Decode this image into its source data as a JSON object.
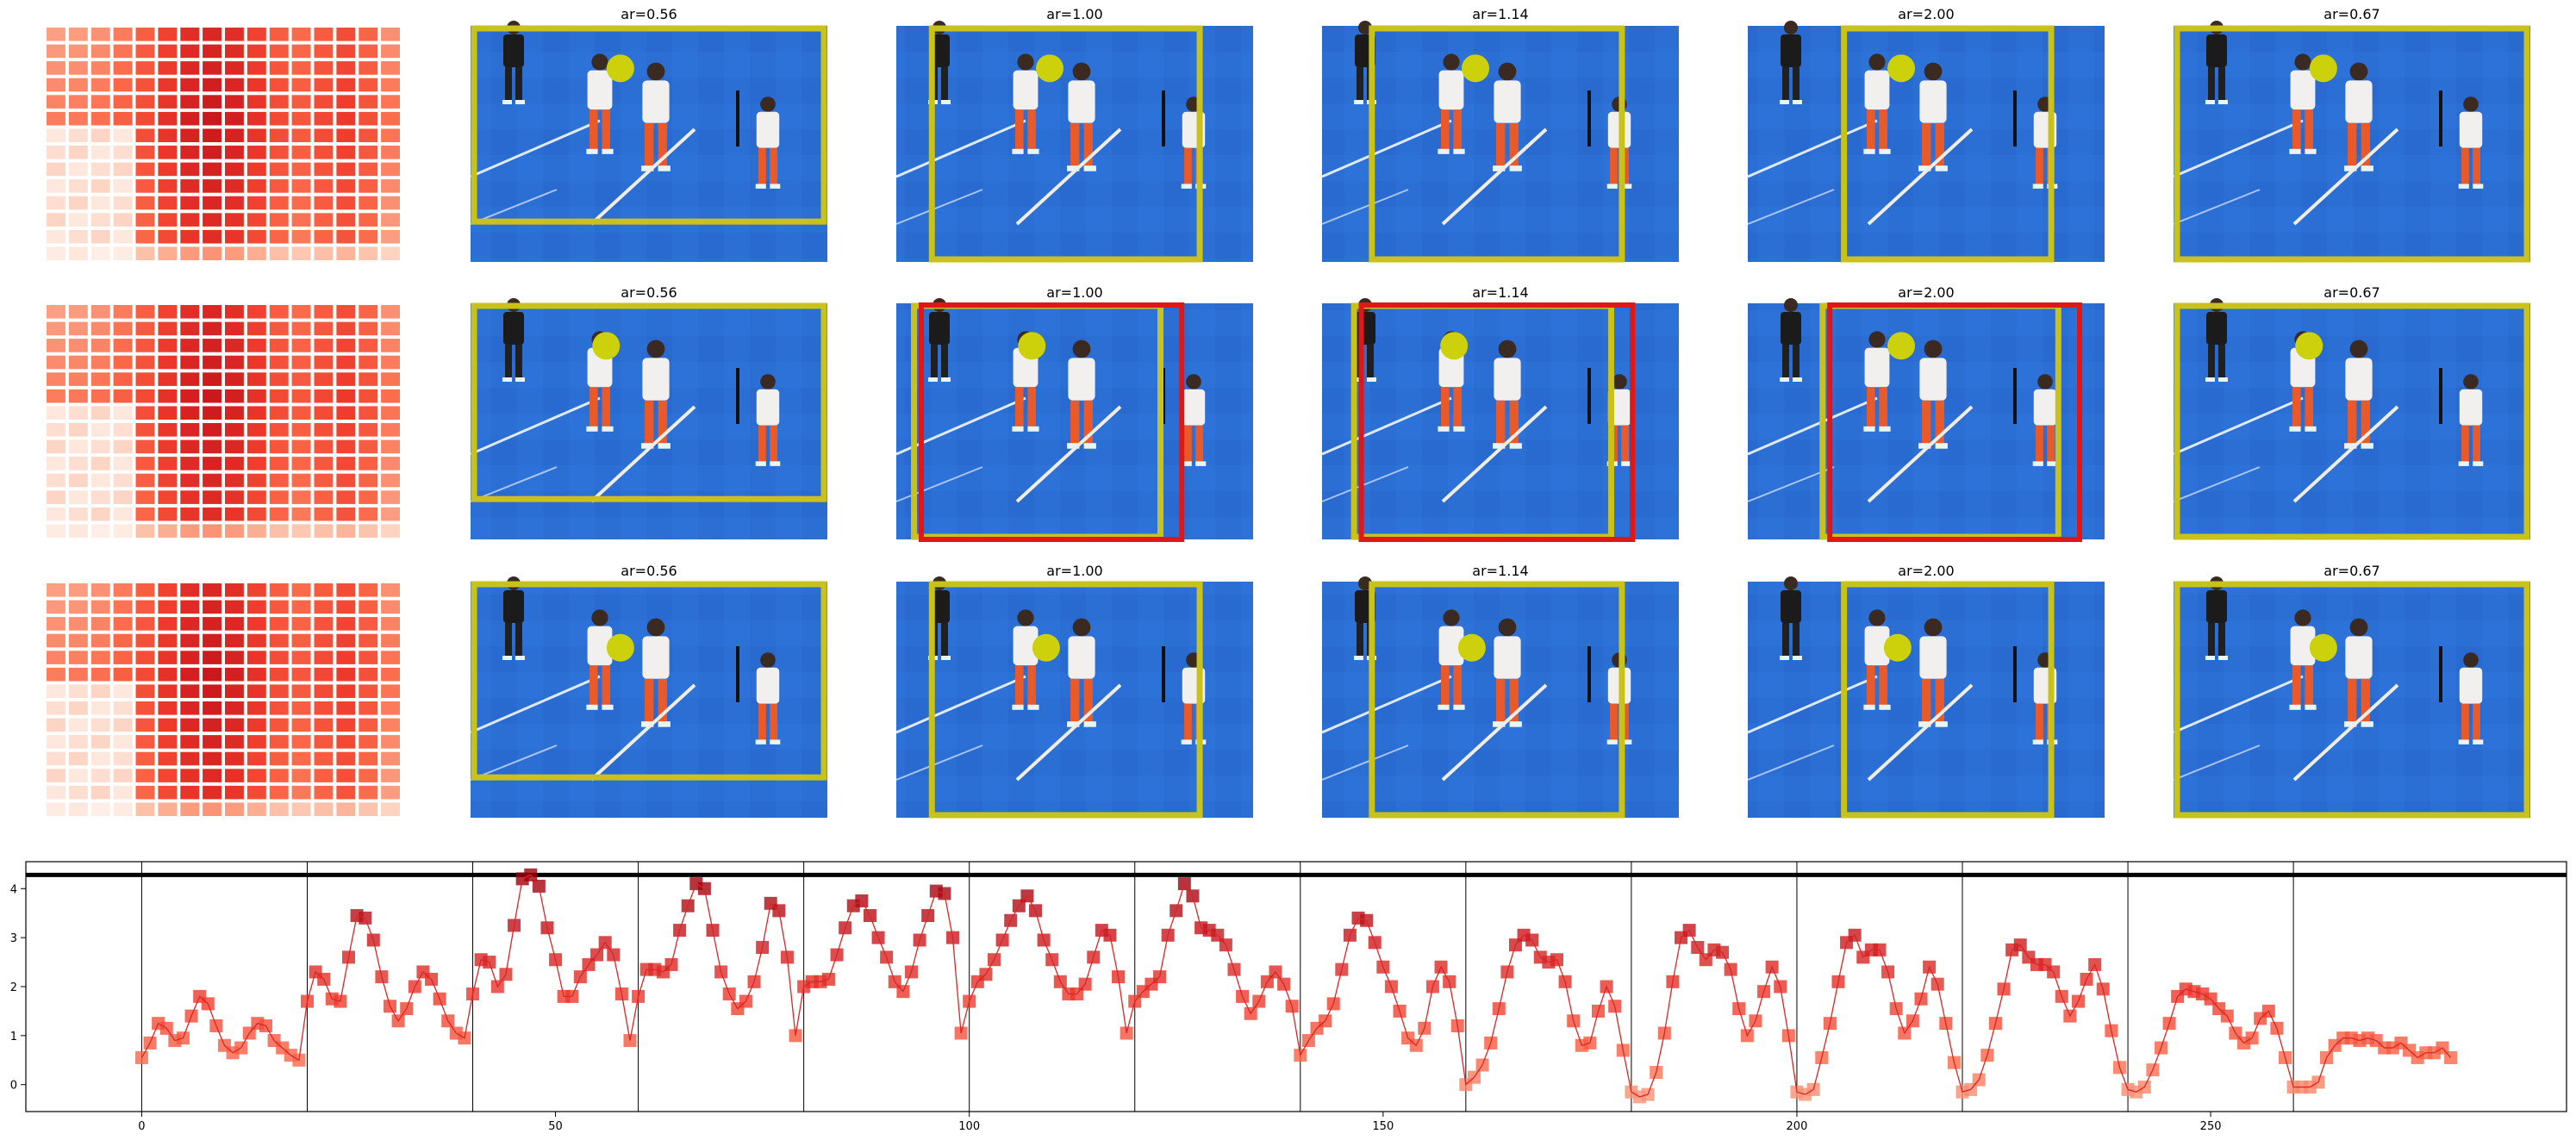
{
  "figure": {
    "grid_rows": 3,
    "thumb_titles": [
      [
        "",
        "ar=0.56",
        "ar=1.00",
        "ar=1.14",
        "ar=2.00",
        "ar=0.67"
      ],
      [
        "",
        "ar=0.56",
        "ar=1.00",
        "ar=1.14",
        "ar=2.00",
        "ar=0.67"
      ],
      [
        "",
        "ar=0.56",
        "ar=1.00",
        "ar=1.14",
        "ar=2.00",
        "ar=0.67"
      ]
    ],
    "heatmap": {
      "cols": 16,
      "rows": 14,
      "cell_color": "#e2402c",
      "palette": "Reds"
    },
    "photo": {
      "field_color": "#2a6fd6",
      "crop_color": "#c8c21a",
      "alt_crop_color": "#e01717",
      "focus_color": "#cdd10b"
    },
    "crop_aspect_ratios": [
      0.56,
      1.0,
      1.14,
      2.0,
      0.67
    ]
  },
  "chart_data": {
    "type": "line",
    "title": "",
    "xlabel": "",
    "ylabel": "",
    "xlim": [
      -14,
      293
    ],
    "ylim": [
      -0.55,
      4.55
    ],
    "xticks": [
      0,
      50,
      100,
      150,
      200,
      250
    ],
    "yticks": [
      0,
      1,
      2,
      3,
      4
    ],
    "vlines": [
      0,
      20,
      40,
      60,
      80,
      100,
      120,
      140,
      160,
      180,
      200,
      220,
      240,
      260
    ],
    "hline": 4.28,
    "grid": false,
    "legend": "none",
    "line_color": "#d62728",
    "marker": "square",
    "color_scale": "Reds",
    "series": [
      {
        "x": [
          0,
          1,
          2,
          3,
          4,
          5,
          6,
          7,
          8,
          9,
          10,
          11,
          12,
          13,
          14,
          15,
          16,
          17,
          18,
          19,
          20,
          21,
          22,
          23,
          24,
          25,
          26,
          27,
          28,
          29,
          30,
          31,
          32,
          33,
          34,
          35,
          36,
          37,
          38,
          39,
          40,
          41,
          42,
          43,
          44,
          45,
          46,
          47,
          48,
          49,
          50,
          51,
          52,
          53,
          54,
          55,
          56,
          57,
          58,
          59,
          60,
          61,
          62,
          63,
          64,
          65,
          66,
          67,
          68,
          69,
          70,
          71,
          72,
          73,
          74,
          75,
          76,
          77,
          78,
          79,
          80,
          81,
          82,
          83,
          84,
          85,
          86,
          87,
          88,
          89,
          90,
          91,
          92,
          93,
          94,
          95,
          96,
          97,
          98,
          99,
          100,
          101,
          102,
          103,
          104,
          105,
          106,
          107,
          108,
          109,
          110,
          111,
          112,
          113,
          114,
          115,
          116,
          117,
          118,
          119,
          120,
          121,
          122,
          123,
          124,
          125,
          126,
          127,
          128,
          129,
          130,
          131,
          132,
          133,
          134,
          135,
          136,
          137,
          138,
          139,
          140,
          141,
          142,
          143,
          144,
          145,
          146,
          147,
          148,
          149,
          150,
          151,
          152,
          153,
          154,
          155,
          156,
          157,
          158,
          159,
          160,
          161,
          162,
          163,
          164,
          165,
          166,
          167,
          168,
          169,
          170,
          171,
          172,
          173,
          174,
          175,
          176,
          177,
          178,
          179,
          180,
          181,
          182,
          183,
          184,
          185,
          186,
          187,
          188,
          189,
          190,
          191,
          192,
          193,
          194,
          195,
          196,
          197,
          198,
          199,
          200,
          201,
          202,
          203,
          204,
          205,
          206,
          207,
          208,
          209,
          210,
          211,
          212,
          213,
          214,
          215,
          216,
          217,
          218,
          219,
          220,
          221,
          222,
          223,
          224,
          225,
          226,
          227,
          228,
          229,
          230,
          231,
          232,
          233,
          234,
          235,
          236,
          237,
          238,
          239,
          240,
          241,
          242,
          243,
          244,
          245,
          246,
          247,
          248,
          249,
          250,
          251,
          252,
          253,
          254,
          255,
          256,
          257,
          258,
          259,
          260,
          261,
          262,
          263,
          264,
          265,
          266,
          267,
          268,
          269,
          270,
          271,
          272,
          273,
          274,
          275,
          276,
          277,
          278,
          279
        ],
        "values": [
          0.55,
          0.85,
          1.25,
          1.15,
          0.9,
          0.95,
          1.4,
          1.8,
          1.65,
          1.2,
          0.8,
          0.65,
          0.75,
          1.05,
          1.25,
          1.2,
          0.9,
          0.75,
          0.6,
          0.5,
          1.7,
          2.3,
          2.15,
          1.75,
          1.7,
          2.6,
          3.45,
          3.4,
          2.95,
          2.2,
          1.6,
          1.3,
          1.55,
          2.0,
          2.3,
          2.15,
          1.75,
          1.3,
          1.05,
          0.95,
          1.85,
          2.55,
          2.5,
          2.0,
          2.25,
          3.25,
          4.2,
          4.28,
          4.05,
          3.2,
          2.55,
          1.8,
          1.8,
          2.2,
          2.45,
          2.65,
          2.9,
          2.65,
          1.85,
          0.9,
          1.8,
          2.35,
          2.35,
          2.3,
          2.45,
          3.15,
          3.65,
          4.1,
          4.0,
          3.15,
          2.3,
          1.85,
          1.55,
          1.7,
          2.1,
          2.8,
          3.7,
          3.55,
          2.6,
          1.0,
          2.0,
          2.1,
          2.1,
          2.15,
          2.65,
          3.2,
          3.65,
          3.75,
          3.45,
          3.0,
          2.6,
          2.1,
          1.9,
          2.3,
          2.95,
          3.45,
          3.95,
          3.9,
          3.0,
          1.05,
          1.7,
          2.1,
          2.25,
          2.55,
          2.95,
          3.35,
          3.65,
          3.85,
          3.55,
          2.95,
          2.55,
          2.1,
          1.85,
          1.85,
          2.05,
          2.6,
          3.15,
          3.05,
          2.2,
          1.05,
          1.7,
          1.9,
          2.05,
          2.2,
          3.05,
          3.55,
          4.1,
          3.85,
          3.2,
          3.15,
          3.05,
          2.85,
          2.35,
          1.8,
          1.45,
          1.7,
          2.1,
          2.3,
          2.05,
          1.6,
          0.6,
          0.9,
          1.15,
          1.3,
          1.65,
          2.35,
          3.05,
          3.4,
          3.35,
          2.9,
          2.4,
          2.0,
          1.5,
          0.95,
          0.8,
          1.15,
          2.0,
          2.4,
          2.1,
          1.2,
          0.0,
          0.15,
          0.4,
          0.85,
          1.55,
          2.3,
          2.85,
          3.05,
          2.95,
          2.6,
          2.5,
          2.55,
          2.1,
          1.3,
          0.8,
          0.85,
          1.5,
          2.0,
          1.6,
          0.7,
          -0.15,
          -0.25,
          -0.2,
          0.25,
          1.05,
          2.1,
          3.0,
          3.15,
          2.8,
          2.55,
          2.75,
          2.7,
          2.35,
          1.55,
          1.0,
          1.3,
          1.9,
          2.4,
          2.0,
          1.0,
          -0.15,
          -0.2,
          -0.1,
          0.55,
          1.25,
          2.1,
          2.9,
          3.05,
          2.6,
          2.75,
          2.75,
          2.3,
          1.55,
          1.05,
          1.3,
          1.75,
          2.4,
          2.05,
          1.25,
          0.45,
          -0.15,
          -0.1,
          0.1,
          0.6,
          1.25,
          1.95,
          2.75,
          2.85,
          2.6,
          2.45,
          2.45,
          2.3,
          1.8,
          1.4,
          1.7,
          2.15,
          2.45,
          1.95,
          1.1,
          0.35,
          -0.1,
          -0.15,
          -0.05,
          0.3,
          0.75,
          1.25,
          1.8,
          1.95,
          1.9,
          1.85,
          1.75,
          1.55,
          1.4,
          1.05,
          0.85,
          0.95,
          1.35,
          1.5,
          1.15,
          0.55,
          -0.05,
          -0.05,
          -0.05,
          0.05,
          0.55,
          0.8,
          0.95,
          0.95,
          0.9,
          0.95,
          0.9,
          0.75,
          0.75,
          0.85,
          0.7,
          0.55,
          0.65,
          0.65,
          0.75,
          0.55
        ]
      }
    ]
  }
}
